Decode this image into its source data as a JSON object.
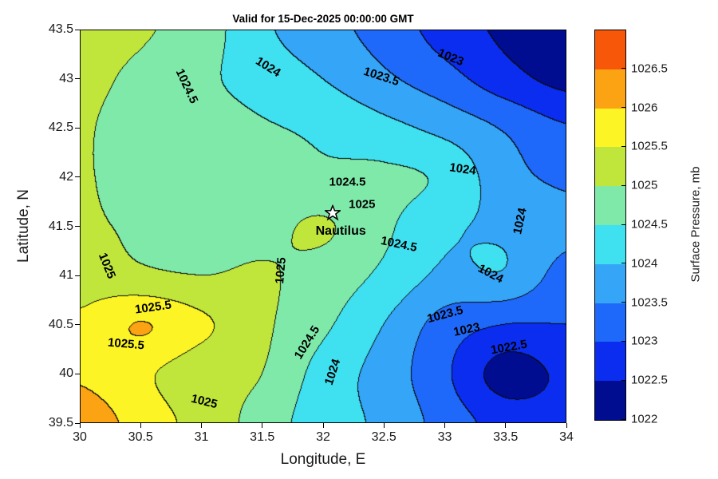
{
  "chart_data": {
    "type": "contour",
    "title": "Valid for 15-Dec-2025 00:00:00 GMT",
    "xlabel": "Longitude, E",
    "ylabel": "Latitude, N",
    "xlim": [
      30,
      34
    ],
    "ylim": [
      39.5,
      43.5
    ],
    "xtick_labels": [
      "30",
      "30.5",
      "31",
      "31.5",
      "32",
      "32.5",
      "33",
      "33.5",
      "34"
    ],
    "ytick_labels": [
      "39.5",
      "40",
      "40.5",
      "41",
      "41.5",
      "42",
      "42.5",
      "43",
      "43.5"
    ],
    "contour_interval_mb": 0.5,
    "colorbar": {
      "label": "Surface Pressure, mb",
      "tick_labels": [
        "1022",
        "1022.5",
        "1023",
        "1023.5",
        "1024",
        "1024.5",
        "1025",
        "1025.5",
        "1026",
        "1026.5"
      ],
      "vmin": 1022,
      "vmax": 1027,
      "bin_size": 0.5,
      "colors": [
        "#000d91",
        "#0b2df0",
        "#1e69fa",
        "#35a5f8",
        "#3fe0f0",
        "#7fe9a9",
        "#c0e63c",
        "#fdf425",
        "#fba313",
        "#f75708"
      ]
    },
    "station": {
      "name": "Nautilus",
      "lon": 32.08,
      "lat": 41.62
    },
    "grid": {
      "lon": [
        30,
        30.5,
        31,
        31.5,
        32,
        32.5,
        33,
        33.5,
        34
      ],
      "lat": [
        43.5,
        43,
        42.5,
        42,
        41.5,
        41,
        40.5,
        40,
        39.5
      ],
      "pressure_mb": [
        [
          1025.1,
          1025.05,
          1024.75,
          1024.1,
          1023.7,
          1023.3,
          1022.8,
          1022.4,
          1022.2
        ],
        [
          1025.1,
          1024.9,
          1024.6,
          1024.3,
          1024.0,
          1023.6,
          1023.2,
          1022.7,
          1022.35
        ],
        [
          1025.05,
          1024.8,
          1024.7,
          1024.55,
          1024.4,
          1024.15,
          1023.85,
          1023.45,
          1023.05
        ],
        [
          1025.05,
          1024.8,
          1024.75,
          1024.7,
          1024.6,
          1024.6,
          1024.4,
          1023.7,
          1023.4
        ],
        [
          1025.1,
          1024.9,
          1024.8,
          1024.85,
          1025.05,
          1024.6,
          1024.1,
          1023.9,
          1023.65
        ],
        [
          1025.3,
          1025.1,
          1025.0,
          1025.05,
          1024.8,
          1024.4,
          1023.9,
          1023.95,
          1023.3
        ],
        [
          1025.6,
          1026.02,
          1025.6,
          1025.1,
          1024.6,
          1024.0,
          1023.3,
          1023.0,
          1023.0
        ],
        [
          1025.9,
          1025.6,
          1025.2,
          1025.0,
          1024.3,
          1023.8,
          1023.1,
          1022.3,
          1022.6
        ],
        [
          1026.3,
          1025.8,
          1025.3,
          1024.8,
          1024.2,
          1023.9,
          1023.3,
          1022.8,
          1022.7
        ]
      ]
    },
    "contour_labels": [
      {
        "text": "1024.5",
        "lon": 30.88,
        "lat": 42.92,
        "rot": 65
      },
      {
        "text": "1024",
        "lon": 31.55,
        "lat": 43.12,
        "rot": 32
      },
      {
        "text": "1023.5",
        "lon": 32.48,
        "lat": 43.02,
        "rot": 18
      },
      {
        "text": "1023",
        "lon": 33.05,
        "lat": 43.22,
        "rot": 22
      },
      {
        "text": "1024",
        "lon": 33.15,
        "lat": 42.08,
        "rot": 8
      },
      {
        "text": "1024.5",
        "lon": 32.2,
        "lat": 41.95,
        "rot": 0
      },
      {
        "text": "1025",
        "lon": 32.32,
        "lat": 41.72,
        "rot": 0
      },
      {
        "text": "1024.5",
        "lon": 32.62,
        "lat": 41.32,
        "rot": 12
      },
      {
        "text": "1024",
        "lon": 33.62,
        "lat": 41.55,
        "rot": -78
      },
      {
        "text": "1024",
        "lon": 33.38,
        "lat": 41.02,
        "rot": 28
      },
      {
        "text": "1025",
        "lon": 30.22,
        "lat": 41.1,
        "rot": 68
      },
      {
        "text": "1025.5",
        "lon": 30.6,
        "lat": 40.68,
        "rot": -8
      },
      {
        "text": "1025.5",
        "lon": 30.38,
        "lat": 40.3,
        "rot": 5
      },
      {
        "text": "1025",
        "lon": 31.65,
        "lat": 41.05,
        "rot": -85
      },
      {
        "text": "1024.5",
        "lon": 31.87,
        "lat": 40.32,
        "rot": -58
      },
      {
        "text": "1024",
        "lon": 32.08,
        "lat": 40.02,
        "rot": -72
      },
      {
        "text": "1023.5",
        "lon": 33.0,
        "lat": 40.6,
        "rot": -15
      },
      {
        "text": "1023",
        "lon": 33.18,
        "lat": 40.45,
        "rot": -12
      },
      {
        "text": "1022.5",
        "lon": 33.53,
        "lat": 40.27,
        "rot": -10
      },
      {
        "text": "1025",
        "lon": 31.02,
        "lat": 39.72,
        "rot": 14
      }
    ]
  }
}
